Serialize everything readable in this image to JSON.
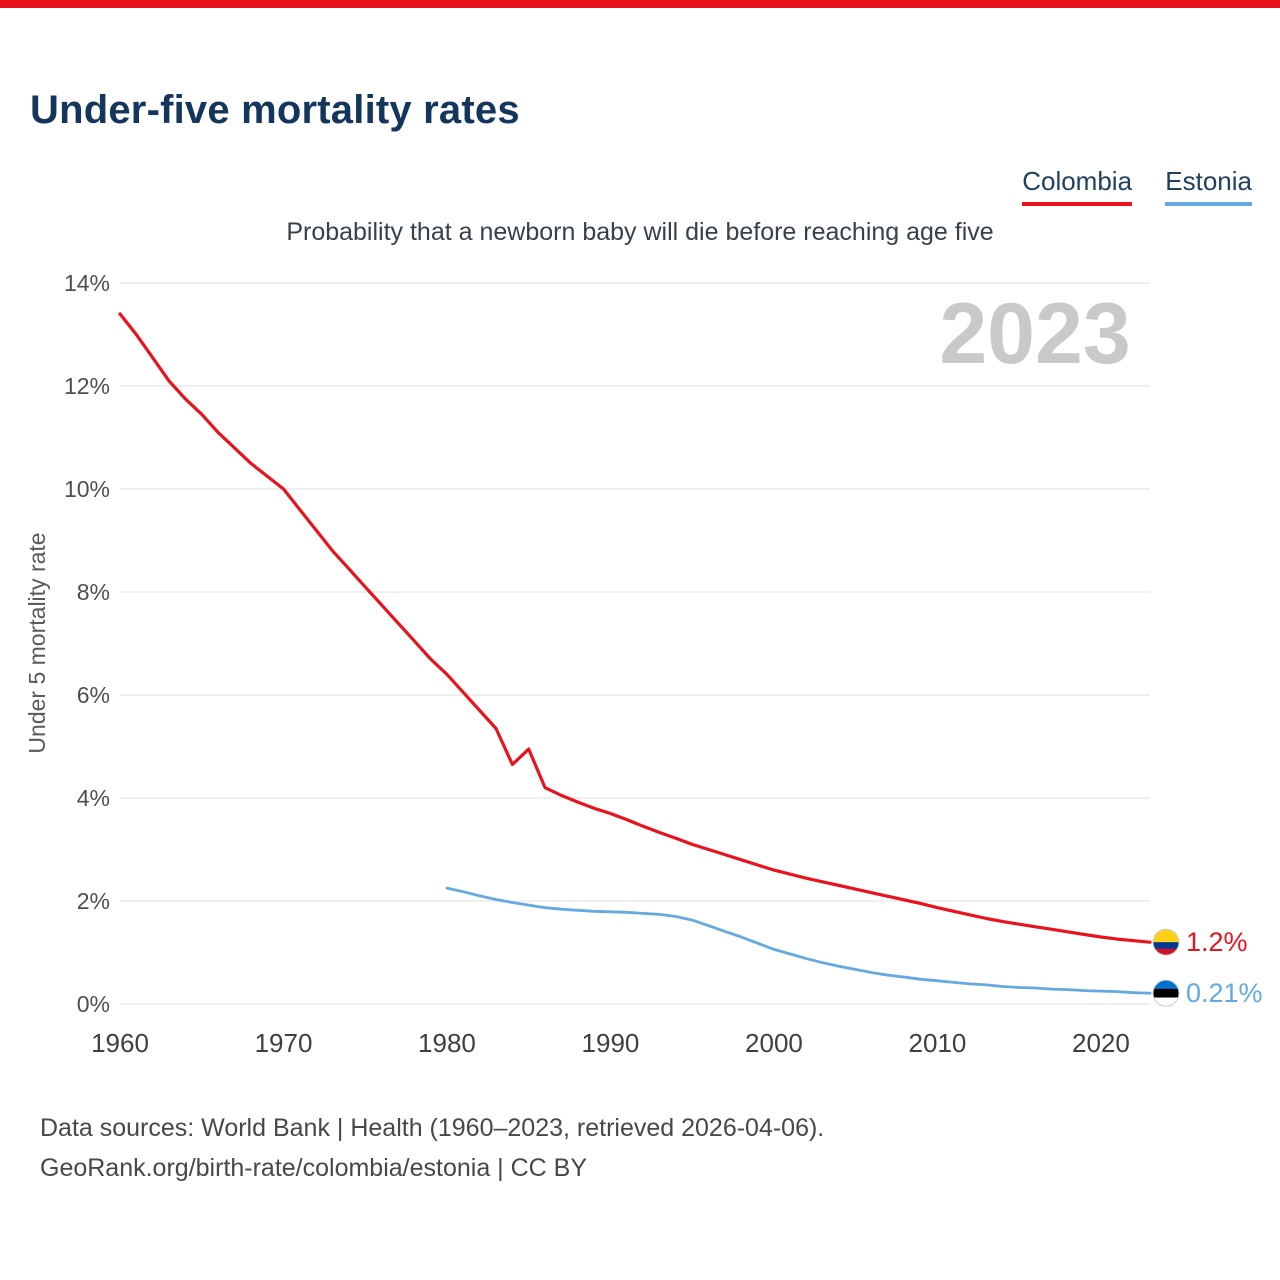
{
  "header": {
    "title": "Under-five mortality rates"
  },
  "legend": [
    {
      "label": "Colombia",
      "color": "#e8131d"
    },
    {
      "label": "Estonia",
      "color": "#64a9e2"
    }
  ],
  "chart_data": {
    "type": "line",
    "title": "Under-five mortality rates",
    "subtitle": "Probability that a newborn baby will die before reaching age five",
    "ylabel": "Under 5 mortality rate",
    "watermark": "2023",
    "grid": true,
    "legend_position": "top-right",
    "xlim": [
      1960,
      2023
    ],
    "ylim": [
      0,
      14
    ],
    "x_ticks": [
      1960,
      1970,
      1980,
      1990,
      2000,
      2010,
      2020
    ],
    "y_ticks": [
      "0%",
      "2%",
      "4%",
      "6%",
      "8%",
      "10%",
      "12%",
      "14%"
    ],
    "series": [
      {
        "name": "Colombia",
        "color": "#e8131d",
        "end_label": "1.2%",
        "flag_stripes": [
          {
            "color": "#FCD116",
            "frac": 0.5
          },
          {
            "color": "#003893",
            "frac": 0.25
          },
          {
            "color": "#CE1126",
            "frac": 0.25
          }
        ],
        "years": [
          1960,
          1961,
          1962,
          1963,
          1964,
          1965,
          1966,
          1967,
          1968,
          1969,
          1970,
          1971,
          1972,
          1973,
          1974,
          1975,
          1976,
          1977,
          1978,
          1979,
          1980,
          1981,
          1982,
          1983,
          1984,
          1985,
          1986,
          1987,
          1988,
          1989,
          1990,
          1991,
          1992,
          1993,
          1994,
          1995,
          1996,
          1997,
          1998,
          1999,
          2000,
          2001,
          2002,
          2003,
          2004,
          2005,
          2006,
          2007,
          2008,
          2009,
          2010,
          2011,
          2012,
          2013,
          2014,
          2015,
          2016,
          2017,
          2018,
          2019,
          2020,
          2021,
          2022,
          2023
        ],
        "values": [
          13.4,
          13.0,
          12.55,
          12.1,
          11.75,
          11.45,
          11.1,
          10.8,
          10.5,
          10.25,
          10.0,
          9.6,
          9.2,
          8.8,
          8.45,
          8.1,
          7.75,
          7.4,
          7.05,
          6.7,
          6.4,
          6.05,
          5.7,
          5.35,
          4.65,
          4.95,
          4.2,
          4.05,
          3.92,
          3.8,
          3.7,
          3.58,
          3.45,
          3.33,
          3.22,
          3.1,
          3.0,
          2.9,
          2.8,
          2.7,
          2.6,
          2.52,
          2.44,
          2.37,
          2.3,
          2.23,
          2.16,
          2.09,
          2.02,
          1.95,
          1.87,
          1.8,
          1.73,
          1.66,
          1.6,
          1.55,
          1.5,
          1.45,
          1.4,
          1.35,
          1.3,
          1.26,
          1.23,
          1.2
        ]
      },
      {
        "name": "Estonia",
        "color": "#64a9e2",
        "end_label": "0.21%",
        "flag_stripes": [
          {
            "color": "#0072CE",
            "frac": 0.3333
          },
          {
            "color": "#000000",
            "frac": 0.3333
          },
          {
            "color": "#FFFFFF",
            "frac": 0.3334
          }
        ],
        "years": [
          1980,
          1981,
          1982,
          1983,
          1984,
          1985,
          1986,
          1987,
          1988,
          1989,
          1990,
          1991,
          1992,
          1993,
          1994,
          1995,
          1996,
          1997,
          1998,
          1999,
          2000,
          2001,
          2002,
          2003,
          2004,
          2005,
          2006,
          2007,
          2008,
          2009,
          2010,
          2011,
          2012,
          2013,
          2014,
          2015,
          2016,
          2017,
          2018,
          2019,
          2020,
          2021,
          2022,
          2023
        ],
        "values": [
          2.25,
          2.18,
          2.1,
          2.03,
          1.97,
          1.92,
          1.87,
          1.84,
          1.82,
          1.8,
          1.79,
          1.78,
          1.76,
          1.74,
          1.7,
          1.63,
          1.52,
          1.41,
          1.3,
          1.18,
          1.06,
          0.97,
          0.88,
          0.8,
          0.73,
          0.67,
          0.61,
          0.56,
          0.52,
          0.48,
          0.45,
          0.42,
          0.39,
          0.37,
          0.34,
          0.32,
          0.31,
          0.29,
          0.28,
          0.26,
          0.25,
          0.24,
          0.22,
          0.21
        ]
      }
    ]
  },
  "footer": {
    "line1": "Data sources: World Bank | Health (1960–2023, retrieved 2026-04-06).",
    "line2": "GeoRank.org/birth-rate/colombia/estonia | CC BY"
  }
}
